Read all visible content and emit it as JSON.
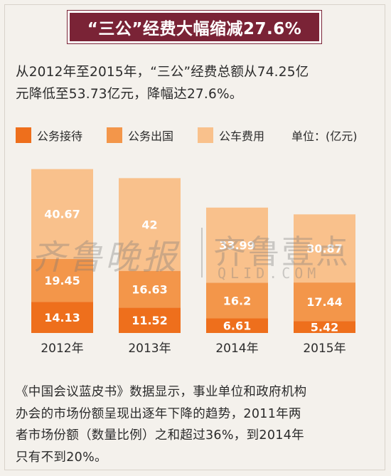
{
  "title": "“三公”经费大幅缩减27.6%",
  "intro": [
    "从2012年至2015年，“三公”经费总额从74.25亿",
    "元降低至53.73亿元，降幅达27.6%。"
  ],
  "legend": {
    "items": [
      {
        "label": "公务接待",
        "color": "#ee6f1c"
      },
      {
        "label": "公务出国",
        "color": "#f3964a"
      },
      {
        "label": "公车费用",
        "color": "#f9c18c"
      }
    ],
    "unit": "单位：(亿元)"
  },
  "watermark": {
    "left": "齐鲁晚报",
    "right": "齐鲁壹点",
    "url": "QLID.COM"
  },
  "chart_data": {
    "type": "bar",
    "stacked": true,
    "categories": [
      "2012年",
      "2013年",
      "2014年",
      "2015年"
    ],
    "series": [
      {
        "name": "公务接待",
        "values": [
          14.13,
          11.52,
          6.61,
          5.42
        ],
        "labels": [
          "14.13",
          "11.52",
          "6.61",
          "5.42"
        ],
        "color": "#ee6f1c"
      },
      {
        "name": "公务出国",
        "values": [
          19.45,
          16.63,
          16.2,
          17.44
        ],
        "labels": [
          "19.45",
          "16.63",
          "16.2",
          "17.44"
        ],
        "color": "#f3964a"
      },
      {
        "name": "公车费用",
        "values": [
          40.67,
          42,
          33.99,
          30.87
        ],
        "labels": [
          "40.67",
          "42",
          "33.99",
          "30.87"
        ],
        "color": "#f9c18c"
      }
    ],
    "ylim": [
      0,
      78
    ],
    "grid": false,
    "legend_position": "top"
  },
  "outro": [
    "《中国会议蓝皮书》数据显示，事业单位和政府机构",
    "办会的市场份额呈现出逐年下降的趋势，2011年两",
    "者市场份额（数量比例）之和超过36%，到2014年",
    "只有不到20%。"
  ]
}
